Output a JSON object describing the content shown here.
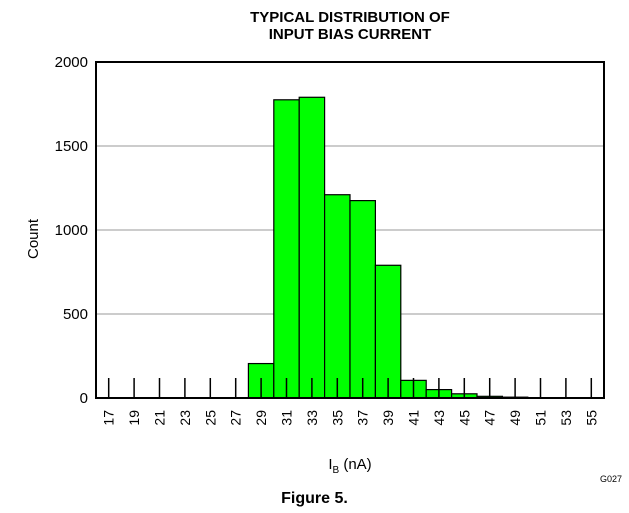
{
  "chart_data": {
    "type": "bar",
    "title_line1": "TYPICAL DISTRIBUTION OF",
    "title_line2": "INPUT BIAS CURRENT",
    "xlabel_main": "I",
    "xlabel_sub": "B",
    "xlabel_unit": " (nA)",
    "ylabel": "Count",
    "ylim": [
      0,
      2000
    ],
    "yticks": [
      "0",
      "500",
      "1000",
      "1500",
      "2000"
    ],
    "grid": true,
    "categories": [
      "17",
      "19",
      "21",
      "23",
      "25",
      "27",
      "29",
      "31",
      "33",
      "35",
      "37",
      "39",
      "41",
      "43",
      "45",
      "47",
      "49",
      "51",
      "53",
      "55"
    ],
    "values": [
      0,
      0,
      0,
      0,
      0,
      0,
      205,
      1775,
      1790,
      1210,
      1175,
      790,
      105,
      50,
      25,
      10,
      5,
      0,
      0,
      0
    ],
    "bar_color": "#00ff00"
  },
  "figure_code": "G027",
  "caption": "Figure 5."
}
